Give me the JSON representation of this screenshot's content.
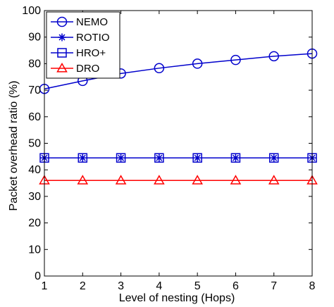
{
  "chart_data": {
    "type": "line",
    "xlabel": "Level of nesting (Hops)",
    "ylabel": "Packet overhead ratio (%)",
    "xlim": [
      1,
      8
    ],
    "ylim": [
      0,
      100
    ],
    "x_ticks": [
      1,
      2,
      3,
      4,
      5,
      6,
      7,
      8
    ],
    "y_ticks": [
      0,
      10,
      20,
      30,
      40,
      50,
      60,
      70,
      80,
      90,
      100
    ],
    "x": [
      1,
      2,
      3,
      4,
      5,
      6,
      7,
      8
    ],
    "grid": false,
    "legend_position": "top-left",
    "series": [
      {
        "name": "NEMO",
        "marker": "circle",
        "color": "#0000CC",
        "values": [
          70.5,
          73.5,
          76.3,
          78.3,
          80.0,
          81.4,
          82.8,
          83.8
        ]
      },
      {
        "name": "ROTIO",
        "marker": "asterisk",
        "color": "#0000CC",
        "values": [
          44.5,
          44.5,
          44.5,
          44.5,
          44.5,
          44.5,
          44.5,
          44.5
        ]
      },
      {
        "name": "HRO+",
        "marker": "square",
        "color": "#0000CC",
        "values": [
          44.5,
          44.5,
          44.5,
          44.5,
          44.5,
          44.5,
          44.5,
          44.5
        ]
      },
      {
        "name": "DRO",
        "marker": "triangle",
        "color": "#FF0000",
        "values": [
          36.0,
          36.0,
          36.0,
          36.0,
          36.0,
          36.0,
          36.0,
          36.0
        ]
      }
    ]
  }
}
